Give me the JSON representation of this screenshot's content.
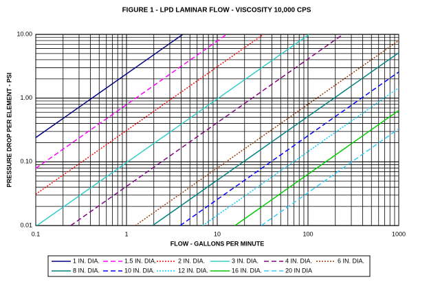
{
  "chart_data": {
    "type": "line",
    "title": "FIGURE 1 - LPD LAMINAR FLOW - VISCOSITY 10,000 CPS",
    "x_label": "FLOW - GALLONS PER MINUTE",
    "y_label": "PRESSURE DROP PER ELEMENT - PSI",
    "x_log": true,
    "y_log": true,
    "grid": true,
    "xlim": [
      0.1,
      1000
    ],
    "ylim": [
      0.01,
      10
    ],
    "xticks": [
      0.1,
      1,
      10,
      100,
      1000
    ],
    "yticks": [
      {
        "value": 0.01,
        "label": "0.01"
      },
      {
        "value": 0.1,
        "label": "0.10"
      },
      {
        "value": 1,
        "label": "1.00"
      },
      {
        "value": 10,
        "label": "10.00"
      }
    ],
    "legend": "bottom",
    "series": [
      {
        "name": "1 IN. DIA.",
        "color": "#000080",
        "dash": "solid",
        "x": [
          0.1,
          4.17
        ],
        "values": [
          0.24,
          10
        ]
      },
      {
        "name": "1.5 IN. DIA.",
        "color": "#ff00ff",
        "dash": "dashed",
        "x": [
          0.1,
          12.7
        ],
        "values": [
          0.079,
          10
        ]
      },
      {
        "name": "2 IN. DIA.",
        "color": "#ff0000",
        "dash": "dotted",
        "x": [
          0.1,
          32.3
        ],
        "values": [
          0.031,
          10
        ]
      },
      {
        "name": "3 IN. DIA.",
        "color": "#33cccc",
        "dash": "solid",
        "x": [
          0.103,
          103
        ],
        "values": [
          0.01,
          10
        ]
      },
      {
        "name": "4 IN. DIA.",
        "color": "#800080",
        "dash": "dashed",
        "x": [
          0.243,
          243
        ],
        "values": [
          0.01,
          10
        ]
      },
      {
        "name": "6 IN. DIA.",
        "color": "#993300",
        "dash": "dotted",
        "x": [
          1.25,
          1000
        ],
        "values": [
          0.01,
          8
        ]
      },
      {
        "name": "8 IN. DIA.",
        "color": "#008080",
        "dash": "solid",
        "x": [
          1.94,
          1000
        ],
        "values": [
          0.01,
          5.15
        ]
      },
      {
        "name": "10 IN. DIA.",
        "color": "#0000ff",
        "dash": "dashed",
        "x": [
          3.9,
          1000
        ],
        "values": [
          0.01,
          2.57
        ]
      },
      {
        "name": "12 IN. DIA.",
        "color": "#00ccff",
        "dash": "dotted",
        "x": [
          6.9,
          1000
        ],
        "values": [
          0.01,
          1.45
        ]
      },
      {
        "name": "16 IN. DIA.",
        "color": "#00cc00",
        "dash": "solid",
        "x": [
          15.7,
          1000
        ],
        "values": [
          0.01,
          0.64
        ]
      },
      {
        "name": "20 IN DIA",
        "color": "#33ccff",
        "dash": "dashed",
        "x": [
          30.6,
          1000
        ],
        "values": [
          0.01,
          0.33
        ]
      }
    ]
  }
}
